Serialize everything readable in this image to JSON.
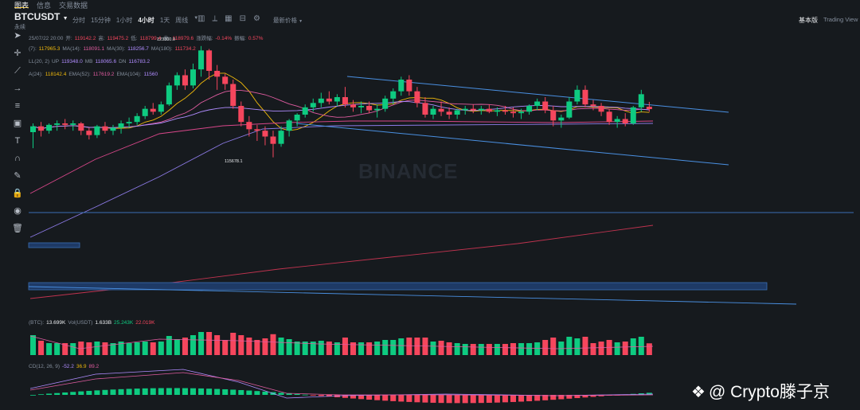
{
  "tabs": [
    "图表",
    "信息",
    "交易数据"
  ],
  "header": {
    "symbol": "BTCUSDT",
    "contract": "永续",
    "intervals": [
      "分时",
      "15分钟",
      "1小时",
      "4小时",
      "1天",
      "周线"
    ],
    "active_interval": "4小时",
    "price_mode": "最新价格",
    "view_basic": "基本版",
    "view_tv": "Trading View"
  },
  "ohlc_row": [
    {
      "t": "25/07/22 20:00",
      "c": "dim"
    },
    {
      "t": "开:",
      "c": "dim"
    },
    {
      "t": "119142.2",
      "c": "red"
    },
    {
      "t": "高:",
      "c": "dim"
    },
    {
      "t": "119475.2",
      "c": "red"
    },
    {
      "t": "低:",
      "c": "dim"
    },
    {
      "t": "118799.4",
      "c": "red"
    },
    {
      "t": "收:",
      "c": "dim"
    },
    {
      "t": "118979.6",
      "c": "red"
    },
    {
      "t": "涨跌幅:",
      "c": "dim"
    },
    {
      "t": "-0.14%",
      "c": "red"
    },
    {
      "t": "振幅:",
      "c": "dim"
    },
    {
      "t": "0.57%",
      "c": "red"
    }
  ],
  "ma_row": [
    {
      "t": "(7):",
      "c": "dim"
    },
    {
      "t": "117965.3",
      "c": "yel"
    },
    {
      "t": "MA(14):",
      "c": "dim"
    },
    {
      "t": "118091.1",
      "c": "pink"
    },
    {
      "t": "MA(30):",
      "c": "dim"
    },
    {
      "t": "118256.7",
      "c": "vio"
    },
    {
      "t": "MA(180):",
      "c": "dim"
    },
    {
      "t": "111734.2",
      "c": "red"
    }
  ],
  "boll_row": [
    {
      "t": "LL(20, 2)",
      "c": "dim"
    },
    {
      "t": "UP",
      "c": "dim"
    },
    {
      "t": "119348.0",
      "c": "vio"
    },
    {
      "t": "MB",
      "c": "dim"
    },
    {
      "t": "118065.6",
      "c": "vio"
    },
    {
      "t": "DN",
      "c": "dim"
    },
    {
      "t": "116783.2",
      "c": "vio"
    }
  ],
  "ema_row": [
    {
      "t": "A(24):",
      "c": "dim"
    },
    {
      "t": "118142.4",
      "c": "yel"
    },
    {
      "t": "EMA(52):",
      "c": "dim"
    },
    {
      "t": "117619.2",
      "c": "pink"
    },
    {
      "t": "EMA(104):",
      "c": "dim"
    },
    {
      "t": "11560",
      "c": "vio"
    }
  ],
  "vol_row": [
    {
      "t": "(BTC):",
      "c": "dim"
    },
    {
      "t": "13.699K",
      "c": "white"
    },
    {
      "t": "Vol(USDT)",
      "c": "dim"
    },
    {
      "t": "1.633B",
      "c": "white"
    },
    {
      "t": "25.243K",
      "c": "green"
    },
    {
      "t": "22.019K",
      "c": "red"
    }
  ],
  "macd_row": [
    {
      "t": "CD(12, 26, 9)",
      "c": "dim"
    },
    {
      "t": "-52.2",
      "c": "vio"
    },
    {
      "t": "36.9",
      "c": "yel"
    },
    {
      "t": "89.2",
      "c": "pink"
    }
  ],
  "watermark": "BINANCE",
  "credit": "@ Crypto滕子京",
  "chart_data": {
    "type": "candlestick",
    "annotations": {
      "high_label": "123300.0",
      "low_label": "115678.1"
    },
    "candles_ohlc": [
      [
        117400,
        118000,
        116300,
        117800
      ],
      [
        117800,
        118100,
        117100,
        117500
      ],
      [
        117500,
        118000,
        117300,
        117900
      ],
      [
        117900,
        118200,
        117500,
        118000
      ],
      [
        118000,
        118300,
        117600,
        117900
      ],
      [
        117900,
        118200,
        117500,
        118000
      ],
      [
        118000,
        118100,
        117200,
        117500
      ],
      [
        117500,
        117700,
        116900,
        117200
      ],
      [
        117200,
        117900,
        117000,
        117800
      ],
      [
        117800,
        118100,
        117300,
        117500
      ],
      [
        117500,
        117900,
        117200,
        117700
      ],
      [
        117700,
        118200,
        117300,
        118000
      ],
      [
        118000,
        118400,
        117700,
        118100
      ],
      [
        118100,
        118700,
        117900,
        118500
      ],
      [
        118500,
        119200,
        118300,
        119000
      ],
      [
        119000,
        119400,
        118600,
        118800
      ],
      [
        118800,
        119500,
        118600,
        119300
      ],
      [
        119300,
        120800,
        119200,
        120600
      ],
      [
        120600,
        121500,
        120300,
        121300
      ],
      [
        121300,
        121700,
        120300,
        120600
      ],
      [
        120600,
        122100,
        120400,
        121700
      ],
      [
        121700,
        123300,
        121200,
        123000
      ],
      [
        123000,
        123100,
        121000,
        121600
      ],
      [
        121600,
        122000,
        120300,
        121200
      ],
      [
        121200,
        121400,
        120300,
        120700
      ],
      [
        120700,
        121000,
        119000,
        119200
      ],
      [
        119200,
        119500,
        117800,
        118100
      ],
      [
        118100,
        118500,
        117100,
        117600
      ],
      [
        117600,
        117900,
        116800,
        117500
      ],
      [
        117500,
        117800,
        116500,
        117100
      ],
      [
        117100,
        117500,
        115678,
        116600
      ],
      [
        116600,
        117800,
        116400,
        117500
      ],
      [
        117500,
        118300,
        117100,
        118200
      ],
      [
        118200,
        118700,
        117800,
        118600
      ],
      [
        118600,
        119300,
        118400,
        119100
      ],
      [
        119100,
        119700,
        118800,
        119400
      ],
      [
        119400,
        120100,
        119100,
        119700
      ],
      [
        119700,
        120200,
        119300,
        119500
      ],
      [
        119500,
        120000,
        119200,
        119800
      ],
      [
        119800,
        120500,
        119100,
        119300
      ],
      [
        119300,
        119600,
        118800,
        119100
      ],
      [
        119100,
        119500,
        118700,
        119200
      ],
      [
        119200,
        119500,
        118700,
        118900
      ],
      [
        118900,
        119300,
        118400,
        119000
      ],
      [
        119000,
        119900,
        118800,
        119700
      ],
      [
        119700,
        120400,
        119300,
        120200
      ],
      [
        120200,
        121200,
        119900,
        121000
      ],
      [
        121000,
        121300,
        119900,
        120200
      ],
      [
        120200,
        120500,
        119100,
        119400
      ],
      [
        119400,
        119800,
        118400,
        118600
      ],
      [
        118600,
        119200,
        118300,
        119000
      ],
      [
        119000,
        119500,
        118500,
        118800
      ],
      [
        118800,
        119100,
        118300,
        118600
      ],
      [
        118600,
        119000,
        118300,
        118900
      ],
      [
        118900,
        119200,
        118600,
        119000
      ],
      [
        119000,
        119300,
        118700,
        118900
      ],
      [
        118900,
        119200,
        118600,
        119000
      ],
      [
        119000,
        119300,
        118700,
        118800
      ],
      [
        118800,
        119100,
        118500,
        118900
      ],
      [
        118900,
        119200,
        118600,
        118800
      ],
      [
        118800,
        119100,
        118400,
        118700
      ],
      [
        118700,
        119000,
        118300,
        118800
      ],
      [
        118800,
        119300,
        118600,
        119200
      ],
      [
        119200,
        119700,
        118900,
        119500
      ],
      [
        119500,
        119800,
        118700,
        118900
      ],
      [
        118900,
        119200,
        117800,
        118200
      ],
      [
        118200,
        118600,
        117700,
        118400
      ],
      [
        118400,
        119800,
        118300,
        119500
      ],
      [
        119500,
        120600,
        119300,
        120300
      ],
      [
        120300,
        120600,
        119100,
        119300
      ],
      [
        119300,
        119600,
        118900,
        119200
      ],
      [
        119200,
        119400,
        118500,
        118800
      ],
      [
        118800,
        119000,
        117900,
        118100
      ],
      [
        118100,
        118500,
        117700,
        118300
      ],
      [
        118300,
        118700,
        117800,
        118000
      ],
      [
        118000,
        119200,
        117900,
        119100
      ],
      [
        119100,
        120300,
        118800,
        120000
      ],
      [
        119142,
        119475,
        118799,
        118980
      ]
    ]
  }
}
